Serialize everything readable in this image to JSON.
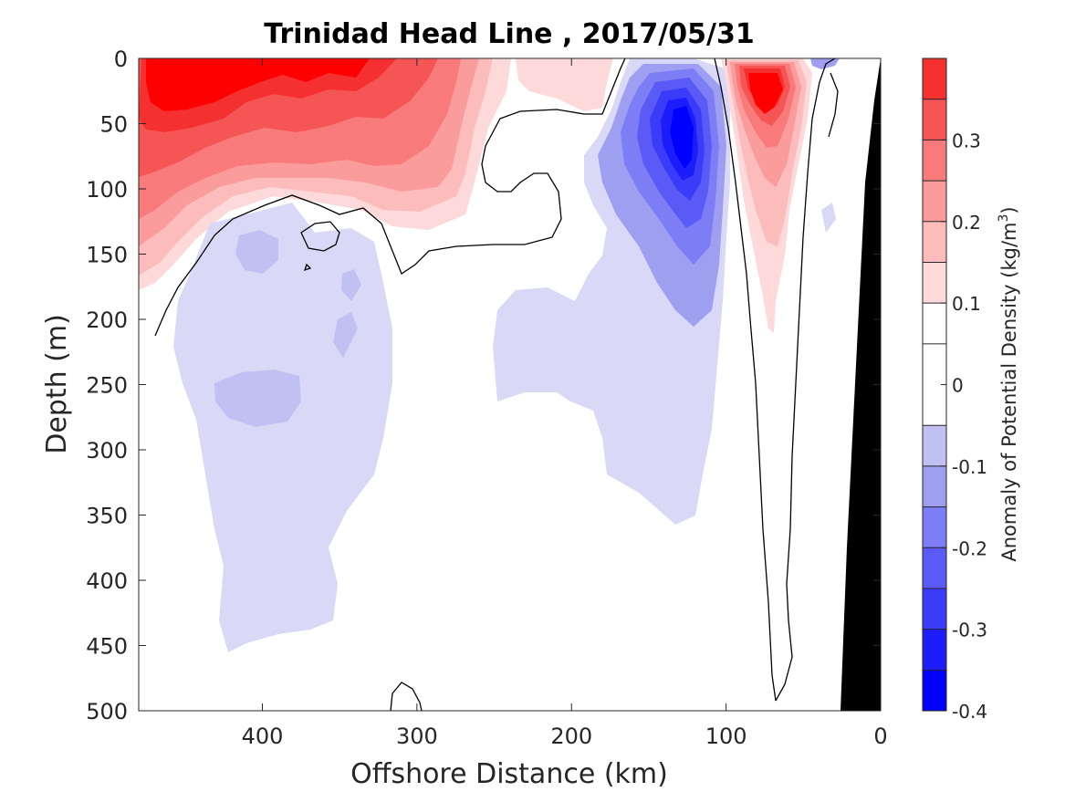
{
  "chart_data": {
    "type": "heatmap",
    "title": "Trinidad Head Line , 2017/05/31",
    "xlabel": "Offshore Distance (km)",
    "ylabel": "Depth (m)",
    "colorbar_label": "Anomaly of Potential Density (kg/m^3)",
    "xlim": [
      480,
      0
    ],
    "ylim": [
      0,
      500
    ],
    "clim": [
      -0.4,
      0.4
    ],
    "x_ticks": [
      400,
      300,
      200,
      100,
      0
    ],
    "y_ticks": [
      0,
      50,
      100,
      150,
      200,
      250,
      300,
      350,
      400,
      450,
      500
    ],
    "colorbar_ticks": [
      0.3,
      0.2,
      0.1,
      0,
      -0.1,
      -0.2,
      -0.3,
      -0.4
    ],
    "contour_levels": [
      -0.4,
      -0.35,
      -0.3,
      -0.25,
      -0.2,
      -0.15,
      -0.1,
      -0.05,
      0.05,
      0.1,
      0.15,
      0.2,
      0.25,
      0.3,
      0.35,
      0.4
    ],
    "level_colors": [
      "#0000ff",
      "#1d1dfc",
      "#3b3bfa",
      "#5a5af7",
      "#7d7df5",
      "#9f9ff2",
      "#c0c0f2",
      "#d9d9f7",
      "#ffffff",
      "#fdd9d9",
      "#fcbcbc",
      "#fa9c9c",
      "#f87a7a",
      "#f65555",
      "#f43030",
      "#ff0000"
    ],
    "features": [
      {
        "name": "offshore surface positive anomaly",
        "x_range": [
          480,
          270
        ],
        "depth_range": [
          0,
          170
        ],
        "peak": 0.4
      },
      {
        "name": "coastal surface positive lens",
        "x_range": [
          260,
          190
        ],
        "depth_range": [
          0,
          45
        ],
        "peak": 0.1
      },
      {
        "name": "negative anomaly core",
        "x_range": [
          170,
          100
        ],
        "depth_range": [
          0,
          210
        ],
        "peak": -0.4
      },
      {
        "name": "nearshore positive jet",
        "x_range": [
          95,
          55
        ],
        "depth_range": [
          0,
          205
        ],
        "peak": 0.4
      },
      {
        "name": "subsurface negative plume west",
        "x_range": [
          470,
          320
        ],
        "depth_range": [
          110,
          460
        ],
        "peak": -0.2
      },
      {
        "name": "subsurface negative plume central",
        "x_range": [
          260,
          100
        ],
        "depth_range": [
          90,
          365
        ],
        "peak": -0.1
      }
    ],
    "bathymetry_color": "#000000",
    "grid": false
  }
}
